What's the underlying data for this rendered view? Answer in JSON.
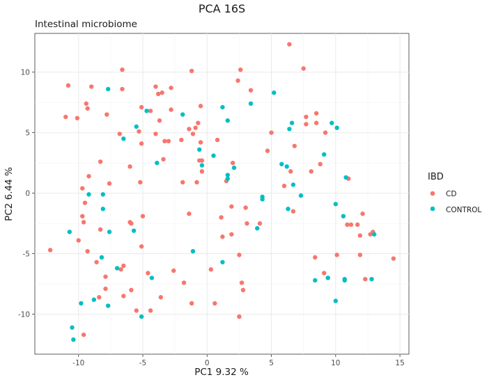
{
  "chart_data": {
    "type": "scatter",
    "title": "PCA 16S",
    "subtitle": "Intestinal microbiome",
    "xlabel": "PC1 9.32 %",
    "ylabel": "PC2 6.44 %",
    "xlim": [
      -13.4,
      15.7
    ],
    "ylim": [
      -13.3,
      13.2
    ],
    "xticks": [
      -10,
      -5,
      0,
      5,
      10,
      15
    ],
    "yticks": [
      -10,
      -5,
      0,
      5,
      10
    ],
    "grid": true,
    "legend": {
      "title": "IBD",
      "position": "right"
    },
    "series": [
      {
        "name": "CD",
        "color": "#F8766D",
        "points": [
          [
            -12.2,
            -4.7
          ],
          [
            -10.8,
            8.9
          ],
          [
            -11.0,
            6.3
          ],
          [
            -10.1,
            6.2
          ],
          [
            -10.0,
            -3.9
          ],
          [
            -9.7,
            0.4
          ],
          [
            -9.7,
            -1.9
          ],
          [
            -9.6,
            -2.4
          ],
          [
            -9.5,
            -0.8
          ],
          [
            -9.4,
            7.4
          ],
          [
            -9.3,
            7.0
          ],
          [
            -9.3,
            -4.8
          ],
          [
            -9.2,
            1.4
          ],
          [
            -9.0,
            8.8
          ],
          [
            -9.6,
            -11.7
          ],
          [
            -8.6,
            -5.7
          ],
          [
            -8.4,
            -8.6
          ],
          [
            -8.3,
            2.6
          ],
          [
            -8.3,
            -3.0
          ],
          [
            -7.9,
            -7.9
          ],
          [
            -7.9,
            -6.9
          ],
          [
            -7.8,
            6.5
          ],
          [
            -7.6,
            0.8
          ],
          [
            -6.8,
            4.9
          ],
          [
            -6.7,
            -6.3
          ],
          [
            -6.6,
            10.2
          ],
          [
            -6.6,
            8.6
          ],
          [
            -6.5,
            -6.0
          ],
          [
            -6.5,
            -8.5
          ],
          [
            -6.0,
            2.2
          ],
          [
            -6.0,
            -2.4
          ],
          [
            -5.9,
            -2.5
          ],
          [
            -5.9,
            -8.0
          ],
          [
            -5.5,
            -9.7
          ],
          [
            -5.3,
            5.1
          ],
          [
            -5.2,
            0.9
          ],
          [
            -5.1,
            4.1
          ],
          [
            -5.1,
            7.1
          ],
          [
            -5.0,
            -1.9
          ],
          [
            -5.1,
            -4.4
          ],
          [
            -4.6,
            -6.6
          ],
          [
            -4.4,
            6.8
          ],
          [
            -4.4,
            -9.7
          ],
          [
            -4.0,
            8.8
          ],
          [
            -4.0,
            4.9
          ],
          [
            -3.8,
            8.2
          ],
          [
            -3.7,
            6.0
          ],
          [
            -3.6,
            -8.6
          ],
          [
            -3.5,
            8.3
          ],
          [
            -3.4,
            2.8
          ],
          [
            -3.3,
            4.3
          ],
          [
            -3.0,
            4.3
          ],
          [
            -2.8,
            8.7
          ],
          [
            -2.8,
            6.9
          ],
          [
            -2.6,
            -6.4
          ],
          [
            -2.0,
            4.4
          ],
          [
            -1.9,
            0.9
          ],
          [
            -1.8,
            -7.4
          ],
          [
            -1.4,
            5.3
          ],
          [
            -1.4,
            -1.7
          ],
          [
            -1.2,
            10.1
          ],
          [
            -1.2,
            -9.1
          ],
          [
            -1.1,
            4.9
          ],
          [
            -0.9,
            5.4
          ],
          [
            -0.8,
            0.9
          ],
          [
            -0.7,
            5.8
          ],
          [
            -0.6,
            2.7
          ],
          [
            -0.5,
            7.2
          ],
          [
            -0.5,
            4.2
          ],
          [
            -0.4,
            2.7
          ],
          [
            -0.4,
            1.8
          ],
          [
            0.3,
            -6.3
          ],
          [
            0.6,
            -9.1
          ],
          [
            0.8,
            4.4
          ],
          [
            1.1,
            -2.0
          ],
          [
            1.2,
            -3.6
          ],
          [
            1.5,
            1.0
          ],
          [
            1.9,
            -3.4
          ],
          [
            1.9,
            -1.1
          ],
          [
            2.0,
            2.5
          ],
          [
            2.4,
            9.3
          ],
          [
            2.6,
            10.2
          ],
          [
            2.5,
            -5.1
          ],
          [
            2.5,
            -10.2
          ],
          [
            2.7,
            -7.4
          ],
          [
            2.8,
            -8.0
          ],
          [
            3.0,
            -1.2
          ],
          [
            3.1,
            -2.5
          ],
          [
            3.4,
            8.5
          ],
          [
            4.1,
            -2.5
          ],
          [
            4.7,
            3.5
          ],
          [
            5.0,
            5.0
          ],
          [
            6.0,
            0.6
          ],
          [
            6.4,
            12.3
          ],
          [
            6.5,
            1.8
          ],
          [
            6.7,
            -1.5
          ],
          [
            6.8,
            3.9
          ],
          [
            7.5,
            10.3
          ],
          [
            7.7,
            5.7
          ],
          [
            7.7,
            6.3
          ],
          [
            8.1,
            1.8
          ],
          [
            8.5,
            5.8
          ],
          [
            8.5,
            6.6
          ],
          [
            8.4,
            -5.3
          ],
          [
            8.8,
            2.4
          ],
          [
            9.1,
            -6.6
          ],
          [
            9.2,
            5.0
          ],
          [
            9.4,
            -7.0
          ],
          [
            10.1,
            -5.1
          ],
          [
            11.0,
            1.2
          ],
          [
            10.9,
            -2.6
          ],
          [
            11.2,
            -2.6
          ],
          [
            11.7,
            -2.6
          ],
          [
            11.9,
            -3.5
          ],
          [
            11.9,
            -5.1
          ],
          [
            12.1,
            -1.7
          ],
          [
            12.3,
            -7.1
          ],
          [
            12.7,
            -3.4
          ],
          [
            12.9,
            -3.2
          ],
          [
            14.5,
            -5.4
          ]
        ]
      },
      {
        "name": "CONTROL",
        "color": "#00BFC4",
        "points": [
          [
            -10.7,
            -3.2
          ],
          [
            -10.5,
            -11.1
          ],
          [
            -10.4,
            -12.1
          ],
          [
            -9.8,
            -9.1
          ],
          [
            -9.2,
            -0.1
          ],
          [
            -8.8,
            -8.8
          ],
          [
            -8.2,
            -5.3
          ],
          [
            -8.1,
            -1.3
          ],
          [
            -8.1,
            -0.1
          ],
          [
            -7.7,
            8.6
          ],
          [
            -7.6,
            -3.2
          ],
          [
            -7.7,
            -9.3
          ],
          [
            -7.0,
            -6.2
          ],
          [
            -6.5,
            4.5
          ],
          [
            -5.7,
            -3.1
          ],
          [
            -5.5,
            5.5
          ],
          [
            -5.1,
            -10.2
          ],
          [
            -4.7,
            6.8
          ],
          [
            -4.3,
            -7.0
          ],
          [
            -3.9,
            2.5
          ],
          [
            -1.9,
            6.5
          ],
          [
            -1.1,
            -4.8
          ],
          [
            -0.6,
            3.6
          ],
          [
            -0.4,
            2.3
          ],
          [
            0.5,
            3.1
          ],
          [
            1.2,
            7.1
          ],
          [
            1.2,
            -5.7
          ],
          [
            1.6,
            6.0
          ],
          [
            1.6,
            1.2
          ],
          [
            1.6,
            1.5
          ],
          [
            2.1,
            2.1
          ],
          [
            3.4,
            7.4
          ],
          [
            3.9,
            -2.9
          ],
          [
            4.3,
            -0.5
          ],
          [
            4.3,
            -0.3
          ],
          [
            5.2,
            8.3
          ],
          [
            5.8,
            2.4
          ],
          [
            6.2,
            2.2
          ],
          [
            6.3,
            -1.3
          ],
          [
            6.4,
            5.3
          ],
          [
            6.6,
            5.8
          ],
          [
            6.7,
            0.7
          ],
          [
            7.3,
            -0.2
          ],
          [
            8.4,
            -7.2
          ],
          [
            9.1,
            3.2
          ],
          [
            9.4,
            -7.0
          ],
          [
            9.7,
            5.8
          ],
          [
            10.0,
            -0.9
          ],
          [
            10.1,
            5.4
          ],
          [
            10.0,
            -8.9
          ],
          [
            10.6,
            -1.9
          ],
          [
            10.7,
            -7.1
          ],
          [
            10.7,
            -7.2
          ],
          [
            10.8,
            1.3
          ],
          [
            12.8,
            -7.1
          ],
          [
            13.0,
            -3.4
          ]
        ]
      }
    ]
  }
}
